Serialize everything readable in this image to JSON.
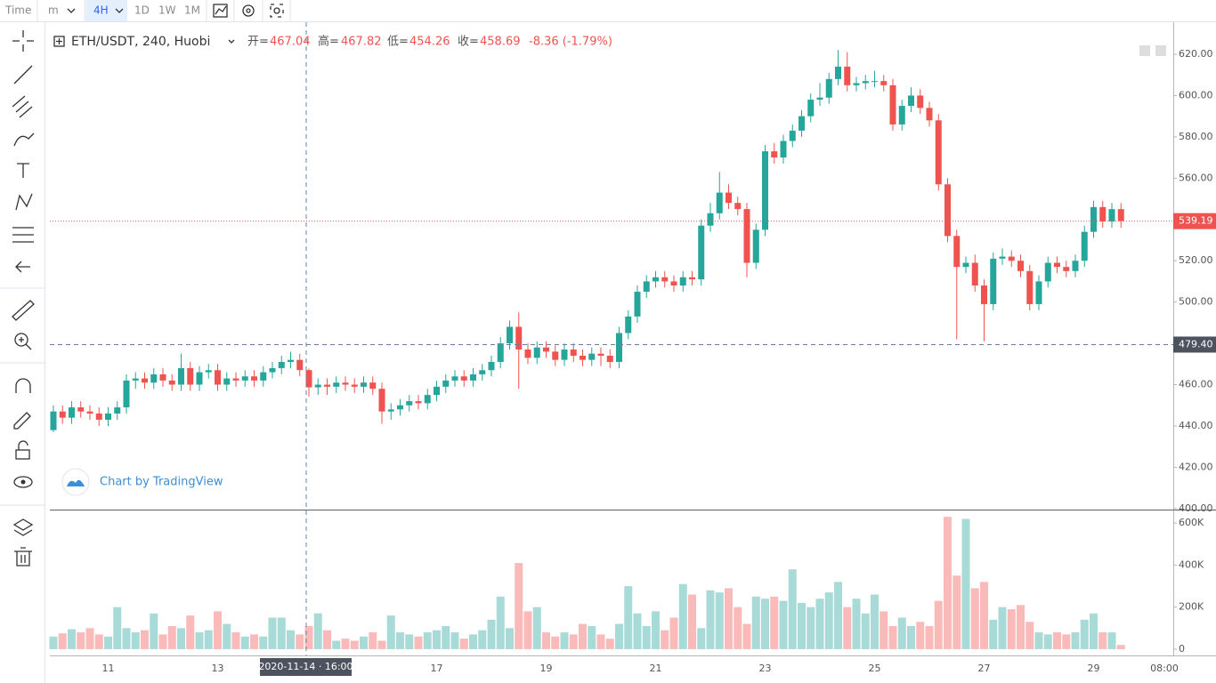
{
  "toolbar": {
    "time": "Time",
    "interval_unit": "m",
    "interval": "4H",
    "ranges": [
      "1D",
      "1W",
      "1M"
    ]
  },
  "legend": {
    "symbol": "ETH/USDT, 240, Huobi",
    "open_label": "开=",
    "open": "467.04",
    "high_label": "高=",
    "high": "467.82",
    "low_label": "低=",
    "low": "454.26",
    "close_label": "收=",
    "close": "458.69",
    "change": "-8.36 (-1.79%)"
  },
  "watermark": "Chart by TradingView",
  "chart_data": {
    "type": "candlestick",
    "up_color": "#26a69a",
    "down_color": "#ef5350",
    "categories": [
      null,
      null,
      null,
      null,
      null,
      null,
      "11",
      null,
      null,
      null,
      null,
      null,
      null,
      null,
      null,
      null,
      null,
      null,
      "13",
      null,
      null,
      null,
      null,
      null,
      null,
      null,
      null,
      null,
      null,
      null,
      null,
      null,
      null,
      null,
      null,
      null,
      null,
      null,
      null,
      null,
      null,
      null,
      "17",
      null,
      null,
      null,
      null,
      null,
      null,
      null,
      null,
      null,
      null,
      null,
      "19",
      null,
      null,
      null,
      null,
      null,
      null,
      null,
      null,
      null,
      null,
      null,
      "21",
      null,
      null,
      null,
      null,
      null,
      null,
      null,
      null,
      null,
      null,
      null,
      "23",
      null,
      null,
      null,
      null,
      null,
      null,
      null,
      null,
      null,
      null,
      null,
      "25",
      null,
      null,
      null,
      null,
      null,
      null,
      null,
      null,
      null,
      null,
      null,
      "27",
      null,
      null,
      null,
      null,
      null,
      null,
      null,
      null,
      null,
      null,
      null,
      "29",
      null,
      null,
      null
    ],
    "x_end_label": "08:00",
    "open": [
      438,
      447,
      444,
      449,
      447,
      446,
      443,
      446,
      449,
      462,
      463,
      461,
      465,
      462,
      460,
      468,
      460,
      466,
      467,
      460,
      463,
      462,
      464,
      462,
      466,
      468,
      471,
      472,
      467.04,
      458.69,
      460,
      459,
      461,
      460,
      459,
      461,
      458,
      447,
      448,
      450,
      452,
      451,
      455,
      459,
      462,
      464,
      462,
      465,
      467,
      471,
      480,
      488,
      477,
      473,
      478,
      476,
      472,
      477,
      474,
      472,
      475,
      474,
      471,
      485,
      493,
      505,
      510,
      512,
      510,
      508,
      512,
      511,
      537,
      543,
      553,
      548,
      545,
      519,
      535,
      573,
      570,
      578,
      583,
      590,
      598,
      599,
      608,
      614,
      605,
      606,
      607,
      607,
      605,
      586,
      595,
      600,
      594,
      588,
      557,
      532,
      517,
      519,
      508,
      499,
      521,
      522,
      520,
      515,
      499,
      510,
      519,
      517,
      515,
      520,
      534,
      546,
      539,
      545
    ],
    "high": [
      450,
      450,
      452,
      452,
      450,
      449,
      449,
      452,
      465,
      466,
      466,
      468,
      468,
      465,
      475,
      471,
      469,
      470,
      470,
      466,
      466,
      467,
      467,
      469,
      471,
      474,
      476,
      475,
      467.82,
      463,
      463,
      464,
      464,
      463,
      464,
      464,
      461,
      451,
      453,
      455,
      455,
      458,
      462,
      465,
      467,
      467,
      468,
      470,
      474,
      483,
      491,
      495,
      480,
      481,
      481,
      479,
      480,
      480,
      477,
      478,
      478,
      477,
      488,
      496,
      508,
      513,
      515,
      515,
      513,
      515,
      515,
      540,
      548,
      563,
      557,
      551,
      548,
      538,
      576,
      577,
      581,
      586,
      593,
      601,
      606,
      611,
      622,
      621,
      609,
      610,
      612,
      610,
      608,
      598,
      604,
      603,
      597,
      591,
      560,
      535,
      522,
      523,
      511,
      524,
      526,
      525,
      523,
      518,
      513,
      522,
      522,
      520,
      523,
      537,
      549,
      549,
      548,
      548
    ],
    "low": [
      437,
      441,
      441,
      444,
      443,
      440,
      440,
      443,
      446,
      458,
      458,
      458,
      459,
      457,
      457,
      457,
      457,
      463,
      457,
      457,
      459,
      459,
      459,
      459,
      463,
      465,
      468,
      464,
      454.26,
      455,
      455,
      456,
      457,
      456,
      456,
      455,
      441,
      443,
      445,
      447,
      448,
      448,
      452,
      456,
      459,
      459,
      459,
      462,
      464,
      468,
      477,
      458,
      470,
      470,
      473,
      469,
      469,
      471,
      469,
      469,
      469,
      468,
      468,
      482,
      490,
      502,
      507,
      507,
      505,
      505,
      508,
      508,
      534,
      540,
      545,
      542,
      512,
      516,
      532,
      567,
      567,
      575,
      580,
      587,
      595,
      596,
      605,
      602,
      602,
      603,
      604,
      602,
      583,
      583,
      592,
      591,
      585,
      554,
      529,
      482,
      514,
      505,
      481,
      496,
      518,
      517,
      512,
      496,
      496,
      507,
      514,
      512,
      512,
      517,
      531,
      536,
      536,
      536
    ],
    "close": [
      447,
      444,
      449,
      447,
      446,
      443,
      446,
      449,
      462,
      463,
      461,
      465,
      462,
      460,
      468,
      460,
      466,
      467,
      460,
      463,
      462,
      464,
      462,
      466,
      468,
      471,
      472,
      467.04,
      458.69,
      460,
      459,
      461,
      460,
      459,
      461,
      458,
      447,
      448,
      450,
      452,
      451,
      455,
      459,
      462,
      464,
      462,
      465,
      467,
      471,
      480,
      488,
      477,
      473,
      478,
      476,
      472,
      477,
      474,
      472,
      475,
      474,
      471,
      485,
      493,
      505,
      510,
      512,
      510,
      508,
      512,
      511,
      537,
      543,
      553,
      548,
      545,
      519,
      535,
      573,
      570,
      578,
      583,
      590,
      598,
      599,
      608,
      614,
      605,
      606,
      607,
      607,
      605,
      586,
      595,
      600,
      594,
      588,
      557,
      532,
      517,
      519,
      508,
      499,
      521,
      522,
      520,
      515,
      499,
      510,
      519,
      517,
      515,
      520,
      534,
      546,
      539,
      545,
      539.19
    ],
    "ylim": [
      399.5,
      635.5
    ],
    "yticks": [
      {
        "value": 400,
        "label": "400.00"
      },
      {
        "value": 420,
        "label": "420.00"
      },
      {
        "value": 440,
        "label": "440.00"
      },
      {
        "value": 460,
        "label": "460.00"
      },
      {
        "value": 480,
        "label": "480.00"
      },
      {
        "value": 500,
        "label": "500.00"
      },
      {
        "value": 520,
        "label": "520.00"
      },
      {
        "value": 540,
        "label": "540.00"
      },
      {
        "value": 560,
        "label": "560.00"
      },
      {
        "value": 580,
        "label": "580.00"
      },
      {
        "value": 600,
        "label": "600.00"
      },
      {
        "value": 620,
        "label": "620.00"
      }
    ],
    "last_price": {
      "value": 539.19,
      "label": "539.19"
    },
    "crosshair": {
      "price": {
        "value": 479.4,
        "label": "479.40"
      },
      "time_label": "2020-11-14 · 16:00"
    },
    "volume": {
      "values": [
        60000,
        75000,
        95000,
        80000,
        100000,
        70000,
        60000,
        200000,
        100000,
        80000,
        90000,
        170000,
        70000,
        110000,
        100000,
        160000,
        80000,
        90000,
        180000,
        120000,
        80000,
        60000,
        70000,
        60000,
        150000,
        150000,
        90000,
        70000,
        110000,
        170000,
        90000,
        40000,
        50000,
        40000,
        60000,
        80000,
        40000,
        160000,
        80000,
        70000,
        60000,
        80000,
        90000,
        110000,
        80000,
        50000,
        70000,
        90000,
        140000,
        250000,
        100000,
        410000,
        180000,
        200000,
        80000,
        60000,
        80000,
        70000,
        120000,
        110000,
        70000,
        50000,
        120000,
        300000,
        170000,
        110000,
        180000,
        90000,
        150000,
        310000,
        260000,
        100000,
        280000,
        270000,
        290000,
        200000,
        120000,
        250000,
        240000,
        250000,
        230000,
        380000,
        220000,
        200000,
        240000,
        270000,
        320000,
        200000,
        240000,
        170000,
        260000,
        180000,
        110000,
        150000,
        110000,
        130000,
        110000,
        230000,
        630000,
        350000,
        620000,
        290000,
        320000,
        140000,
        200000,
        190000,
        210000,
        130000,
        80000,
        70000,
        80000,
        70000,
        80000,
        140000,
        170000,
        80000,
        80000,
        20000
      ],
      "ylim": [
        -30000,
        656000
      ],
      "yticks": [
        {
          "value": 0,
          "label": "0"
        },
        {
          "value": 200000,
          "label": "200K"
        },
        {
          "value": 400000,
          "label": "400K"
        },
        {
          "value": 600000,
          "label": "600K"
        }
      ]
    }
  }
}
